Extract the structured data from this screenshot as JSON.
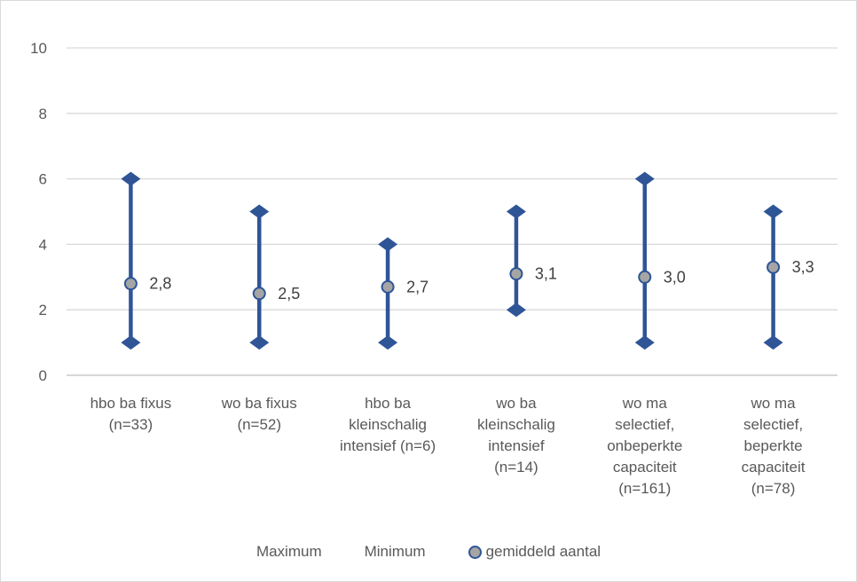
{
  "chart_data": {
    "type": "range",
    "ylim": [
      0,
      10
    ],
    "yticks": [
      "0",
      "2",
      "4",
      "6",
      "8",
      "10"
    ],
    "grid": true,
    "legend_placement": "bottom",
    "colors": {
      "range": "#2f5597",
      "marker_fill": "#a5a5a5",
      "grid": "#d9d9d9",
      "text": "#595959"
    },
    "categories": [
      [
        "hbo ba fixus",
        "(n=33)"
      ],
      [
        "wo ba fixus",
        "(n=52)"
      ],
      [
        "hbo ba",
        "kleinschalig",
        "intensief (n=6)"
      ],
      [
        "wo ba",
        "kleinschalig",
        "intensief",
        "(n=14)"
      ],
      [
        "wo ma",
        "selectief,",
        "onbeperkte",
        "capaciteit",
        "(n=161)"
      ],
      [
        "wo ma",
        "selectief,",
        "beperkte",
        "capaciteit",
        "(n=78)"
      ]
    ],
    "series": [
      {
        "name": "Maximum",
        "values": [
          6,
          5,
          4,
          5,
          6,
          5
        ]
      },
      {
        "name": "Minimum",
        "values": [
          1,
          1,
          1,
          2,
          1,
          1
        ]
      },
      {
        "name": "gemiddeld aantal",
        "values": [
          2.8,
          2.5,
          2.7,
          3.1,
          3.0,
          3.3
        ],
        "labels": [
          "2,8",
          "2,5",
          "2,7",
          "3,1",
          "3,0",
          "3,3"
        ]
      }
    ]
  }
}
